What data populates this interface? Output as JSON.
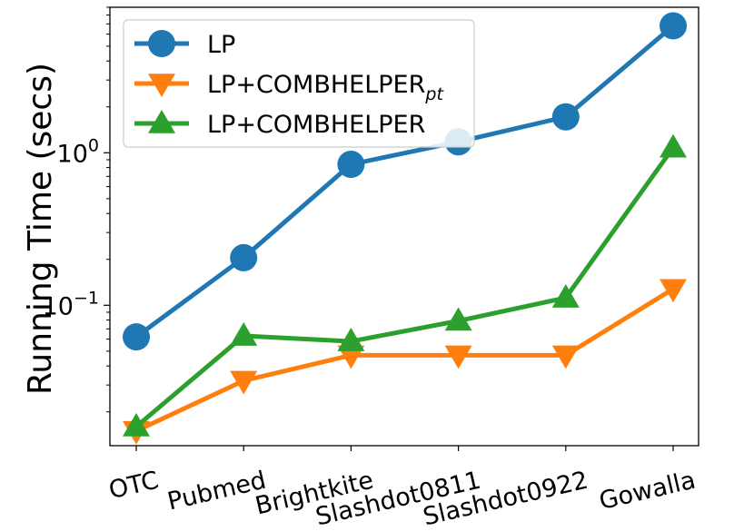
{
  "chart_data": {
    "type": "line",
    "categories": [
      "OTC",
      "Pubmed",
      "Brightkite",
      "Slashdot0811",
      "Slashdot0922",
      "Gowalla"
    ],
    "ylabel": "Running Time (secs)",
    "xlabel": "",
    "yscale": "log",
    "ylim": [
      0.012,
      9
    ],
    "yticks": [
      {
        "value": 1,
        "base": "10",
        "exp": "0"
      },
      {
        "value": 0.1,
        "base": "10",
        "exp": "−1"
      }
    ],
    "grid": false,
    "legend_position": "top-left",
    "series": [
      {
        "name": "LP",
        "name_sub": "",
        "color": "#1f77b4",
        "marker": "circle",
        "values": [
          0.062,
          0.205,
          0.84,
          1.18,
          1.72,
          6.8
        ]
      },
      {
        "name": "LP+COMBHELPER",
        "name_sub": "pt",
        "color": "#ff7f0e",
        "marker": "triangle-down",
        "values": [
          0.015,
          0.032,
          0.047,
          0.047,
          0.047,
          0.128
        ]
      },
      {
        "name": "LP+COMBHELPER",
        "name_sub": "",
        "color": "#2ca02c",
        "marker": "triangle-up",
        "values": [
          0.016,
          0.063,
          0.058,
          0.079,
          0.112,
          1.08
        ]
      }
    ]
  }
}
